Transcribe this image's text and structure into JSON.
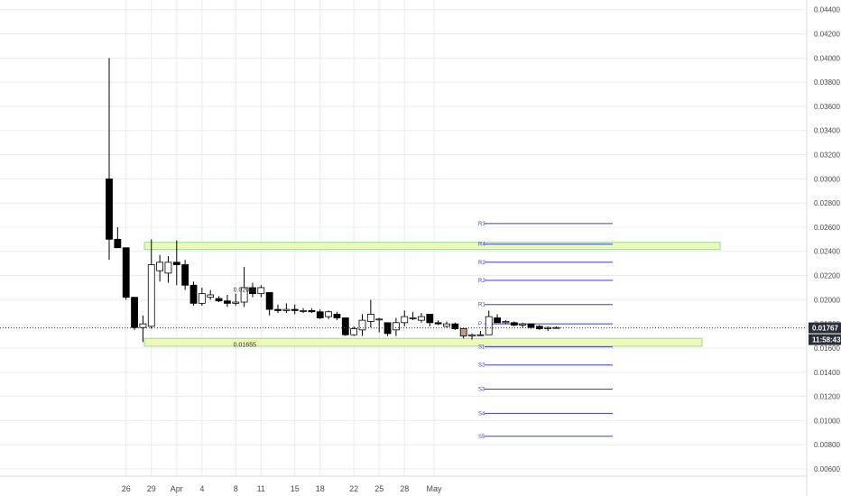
{
  "chart_data": {
    "type": "candlestick",
    "y_range": [
      0.0054,
      0.0448
    ],
    "y_ticks": [
      "0.04400",
      "0.04200",
      "0.04000",
      "0.03800",
      "0.03600",
      "0.03400",
      "0.03200",
      "0.03000",
      "0.02800",
      "0.02600",
      "0.02400",
      "0.02200",
      "0.02000",
      "0.01800",
      "0.01600",
      "0.01400",
      "0.01200",
      "0.01000",
      "0.00800",
      "0.00600"
    ],
    "x_ticks": [
      "26",
      "29",
      "Apr",
      "4",
      "8",
      "11",
      "15",
      "18",
      "22",
      "25",
      "28",
      "May"
    ],
    "candles": [
      {
        "date": "Mar 24",
        "o": 0.03,
        "h": 0.04,
        "l": 0.0233,
        "c": 0.025
      },
      {
        "date": "Mar 25",
        "o": 0.025,
        "h": 0.026,
        "l": 0.0243,
        "c": 0.0243
      },
      {
        "date": "Mar 26",
        "o": 0.0243,
        "h": 0.0243,
        "l": 0.02,
        "c": 0.0202
      },
      {
        "date": "Mar 27",
        "o": 0.0202,
        "h": 0.0202,
        "l": 0.0175,
        "c": 0.0177
      },
      {
        "date": "Mar 28",
        "o": 0.0177,
        "h": 0.0187,
        "l": 0.0165,
        "c": 0.018
      },
      {
        "date": "Mar 29",
        "o": 0.0178,
        "h": 0.025,
        "l": 0.0176,
        "c": 0.0229
      },
      {
        "date": "Mar 30",
        "o": 0.0224,
        "h": 0.0237,
        "l": 0.0215,
        "c": 0.0231
      },
      {
        "date": "Mar 31",
        "o": 0.0222,
        "h": 0.0236,
        "l": 0.0214,
        "c": 0.0231
      },
      {
        "date": "Apr 1",
        "o": 0.0231,
        "h": 0.0249,
        "l": 0.0212,
        "c": 0.0229
      },
      {
        "date": "Apr 2",
        "o": 0.0229,
        "h": 0.0233,
        "l": 0.0208,
        "c": 0.0212
      },
      {
        "date": "Apr 3",
        "o": 0.0212,
        "h": 0.0215,
        "l": 0.0195,
        "c": 0.0197
      },
      {
        "date": "Apr 4",
        "o": 0.0197,
        "h": 0.021,
        "l": 0.0195,
        "c": 0.0205
      },
      {
        "date": "Apr 5",
        "o": 0.0202,
        "h": 0.0208,
        "l": 0.02,
        "c": 0.0204
      },
      {
        "date": "Apr 6",
        "o": 0.0201,
        "h": 0.0203,
        "l": 0.0198,
        "c": 0.0199
      },
      {
        "date": "Apr 7",
        "o": 0.0199,
        "h": 0.0204,
        "l": 0.0194,
        "c": 0.0197
      },
      {
        "date": "Apr 8",
        "o": 0.0197,
        "h": 0.0205,
        "l": 0.0195,
        "c": 0.0198
      },
      {
        "date": "Apr 9",
        "o": 0.0198,
        "h": 0.0227,
        "l": 0.0194,
        "c": 0.021
      },
      {
        "date": "Apr 10",
        "o": 0.021,
        "h": 0.0214,
        "l": 0.0202,
        "c": 0.0205
      },
      {
        "date": "Apr 11",
        "o": 0.0205,
        "h": 0.0212,
        "l": 0.0202,
        "c": 0.021
      },
      {
        "date": "Apr 12",
        "o": 0.0206,
        "h": 0.0206,
        "l": 0.0187,
        "c": 0.0192
      },
      {
        "date": "Apr 13",
        "o": 0.0192,
        "h": 0.0196,
        "l": 0.0189,
        "c": 0.0191
      },
      {
        "date": "Apr 14",
        "o": 0.0191,
        "h": 0.0197,
        "l": 0.0189,
        "c": 0.0192
      },
      {
        "date": "Apr 15",
        "o": 0.0192,
        "h": 0.0196,
        "l": 0.0188,
        "c": 0.0191
      },
      {
        "date": "Apr 16",
        "o": 0.0191,
        "h": 0.0193,
        "l": 0.0189,
        "c": 0.0191
      },
      {
        "date": "Apr 17",
        "o": 0.0191,
        "h": 0.0193,
        "l": 0.0189,
        "c": 0.019
      },
      {
        "date": "Apr 18",
        "o": 0.019,
        "h": 0.0192,
        "l": 0.0184,
        "c": 0.0185
      },
      {
        "date": "Apr 19",
        "o": 0.0186,
        "h": 0.0191,
        "l": 0.0184,
        "c": 0.019
      },
      {
        "date": "Apr 20",
        "o": 0.0188,
        "h": 0.019,
        "l": 0.0183,
        "c": 0.0185
      },
      {
        "date": "Apr 21",
        "o": 0.0185,
        "h": 0.0185,
        "l": 0.017,
        "c": 0.0171
      },
      {
        "date": "Apr 22",
        "o": 0.0171,
        "h": 0.0178,
        "l": 0.017,
        "c": 0.0176
      },
      {
        "date": "Apr 23",
        "o": 0.0175,
        "h": 0.0188,
        "l": 0.017,
        "c": 0.0183
      },
      {
        "date": "Apr 24",
        "o": 0.0182,
        "h": 0.02,
        "l": 0.0177,
        "c": 0.0188
      },
      {
        "date": "Apr 25",
        "o": 0.0184,
        "h": 0.0185,
        "l": 0.0173,
        "c": 0.0184
      },
      {
        "date": "Apr 26",
        "o": 0.0181,
        "h": 0.0181,
        "l": 0.017,
        "c": 0.0172
      },
      {
        "date": "Apr 27",
        "o": 0.0175,
        "h": 0.0185,
        "l": 0.017,
        "c": 0.0181
      },
      {
        "date": "Apr 28",
        "o": 0.0181,
        "h": 0.0191,
        "l": 0.0178,
        "c": 0.0186
      },
      {
        "date": "Apr 29",
        "o": 0.0185,
        "h": 0.019,
        "l": 0.0183,
        "c": 0.0185
      },
      {
        "date": "Apr 30",
        "o": 0.0183,
        "h": 0.0189,
        "l": 0.0181,
        "c": 0.0186
      },
      {
        "date": "May 1",
        "o": 0.0188,
        "h": 0.0188,
        "l": 0.0178,
        "c": 0.0181
      },
      {
        "date": "May 2",
        "o": 0.0181,
        "h": 0.0183,
        "l": 0.0179,
        "c": 0.018
      },
      {
        "date": "May 3",
        "o": 0.0178,
        "h": 0.0182,
        "l": 0.0177,
        "c": 0.018
      },
      {
        "date": "May 4",
        "o": 0.018,
        "h": 0.0181,
        "l": 0.0175,
        "c": 0.0176
      },
      {
        "date": "May 5",
        "o": 0.0176,
        "h": 0.0176,
        "l": 0.0168,
        "c": 0.017
      },
      {
        "date": "May 6",
        "o": 0.017,
        "h": 0.0172,
        "l": 0.0167,
        "c": 0.0171
      },
      {
        "date": "May 7",
        "o": 0.0171,
        "h": 0.0174,
        "l": 0.017,
        "c": 0.0171
      },
      {
        "date": "May 8",
        "o": 0.0171,
        "h": 0.0191,
        "l": 0.0171,
        "c": 0.0186
      },
      {
        "date": "May 9",
        "o": 0.0185,
        "h": 0.0188,
        "l": 0.0181,
        "c": 0.0181
      },
      {
        "date": "May 10",
        "o": 0.0181,
        "h": 0.0183,
        "l": 0.018,
        "c": 0.0182
      },
      {
        "date": "May 11",
        "o": 0.0181,
        "h": 0.0182,
        "l": 0.0178,
        "c": 0.0179
      },
      {
        "date": "May 12",
        "o": 0.0179,
        "h": 0.0181,
        "l": 0.0177,
        "c": 0.018
      },
      {
        "date": "May 13",
        "o": 0.018,
        "h": 0.018,
        "l": 0.0176,
        "c": 0.0177
      },
      {
        "date": "May 14",
        "o": 0.0178,
        "h": 0.0179,
        "l": 0.0175,
        "c": 0.0176
      },
      {
        "date": "May 15",
        "o": 0.0176,
        "h": 0.0178,
        "l": 0.0174,
        "c": 0.0177
      },
      {
        "date": "May 16",
        "o": 0.0177,
        "h": 0.0178,
        "l": 0.0176,
        "c": 0.0177
      }
    ],
    "zones": [
      {
        "low": 0.02415,
        "high": 0.02475,
        "color": "#eef9b8",
        "border": "#9bd69b"
      },
      {
        "low": 0.01615,
        "high": 0.0168,
        "color": "#eef9b8",
        "border": "#9bd69b"
      }
    ],
    "pivot_levels": [
      {
        "label": "R3",
        "value": 0.0263
      },
      {
        "label": "R4",
        "value": 0.0246
      },
      {
        "label": "R2",
        "value": 0.0231
      },
      {
        "label": "R2",
        "value": 0.0216
      },
      {
        "label": "R1",
        "value": 0.0196
      },
      {
        "label": "P",
        "value": 0.018
      },
      {
        "label": "S1",
        "value": 0.0161
      },
      {
        "label": "S2",
        "value": 0.0146
      },
      {
        "label": "S3",
        "value": 0.0126
      },
      {
        "label": "S4",
        "value": 0.0106
      },
      {
        "label": "S5",
        "value": 0.0087
      }
    ],
    "annotations": [
      {
        "text": "0.02005",
        "value": 0.02005,
        "date": "Apr 9"
      },
      {
        "text": "0.01655",
        "value": 0.01655,
        "date": "Apr 9"
      }
    ],
    "last_price": {
      "value": 0.01767,
      "label": "0.01767",
      "time": "11:58:43",
      "color": "#2a2e39"
    },
    "colors": {
      "up": "#ffffff",
      "down": "#000000",
      "last": "#c79a7f",
      "grid": "#e8ecf0",
      "pivot": "#3f3fd6",
      "axis_text": "#4a4a4a"
    }
  }
}
